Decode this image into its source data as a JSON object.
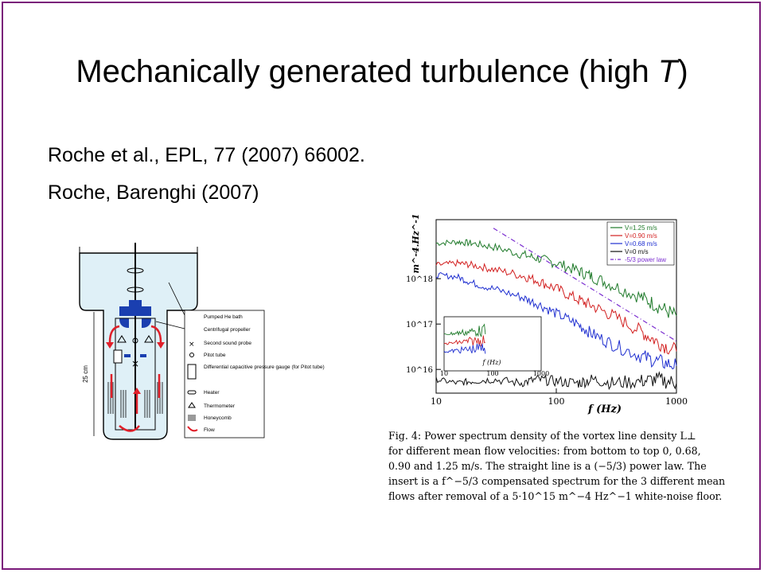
{
  "slide": {
    "title_prefix": "Mechanically generated turbulence (high ",
    "title_italic": "T",
    "title_suffix": ")",
    "references": [
      "Roche et al., EPL, 77 (2007) 66002.",
      "Roche, Barenghi (2007)"
    ]
  },
  "apparatus": {
    "height_label": "25 cm",
    "legend": [
      "Pumped He bath",
      "Centrifugal propeller",
      "Second sound probe",
      "Pitot tube",
      "Differential capacitive pressure gauge (for Pitot tube)",
      "Heater",
      "Thermometer",
      "Honeycomb",
      "Flow"
    ],
    "colors": {
      "flow": "#e0202a",
      "propeller": "#1a3fb0",
      "bath": "#dff0f7"
    }
  },
  "chart_data": {
    "type": "line",
    "xlabel": "f (Hz)",
    "ylabel": "m^-4.Hz^-1",
    "x_scale": "log",
    "y_scale": "log",
    "xlim": [
      10,
      1000
    ],
    "ylim": [
      3000000000000000.0,
      2e+19
    ],
    "x_ticks": [
      "10",
      "100",
      "1000"
    ],
    "y_ticks": [
      "10^16",
      "10^17",
      "10^18"
    ],
    "series": [
      {
        "name": "V=1.25 m/s",
        "color": "#1f7a2a",
        "x": [
          10,
          15,
          20,
          30,
          50,
          70,
          100,
          150,
          200,
          300,
          500,
          700,
          1000
        ],
        "y": [
          6e+18,
          6.5e+18,
          6e+18,
          5e+18,
          3.5e+18,
          2.8e+18,
          2.2e+18,
          1.5e+18,
          1.1e+18,
          7e+17,
          4e+17,
          2.5e+17,
          1.5e+17
        ]
      },
      {
        "name": "V=0.90 m/s",
        "color": "#d21f1f",
        "x": [
          10,
          15,
          20,
          30,
          50,
          70,
          100,
          150,
          200,
          300,
          500,
          700,
          1000
        ],
        "y": [
          2e+18,
          2.2e+18,
          2e+18,
          1.6e+18,
          1.2e+18,
          9e+17,
          6e+17,
          3.5e+17,
          2.5e+17,
          1.5e+17,
          7e+16,
          4e+16,
          2.5e+16
        ]
      },
      {
        "name": "V=0.68 m/s",
        "color": "#1f2fd0",
        "x": [
          10,
          15,
          20,
          30,
          50,
          70,
          100,
          150,
          200,
          300,
          500,
          700,
          1000
        ],
        "y": [
          1.2e+18,
          1.1e+18,
          8e+17,
          6e+17,
          4e+17,
          2.8e+17,
          1.7e+17,
          1e+17,
          6e+16,
          3.5e+16,
          2e+16,
          1.5e+16,
          1.2e+16
        ]
      },
      {
        "name": "V=0 m/s",
        "color": "#111111",
        "x": [
          10,
          15,
          20,
          30,
          50,
          70,
          100,
          150,
          200,
          300,
          500,
          700,
          1000
        ],
        "y": [
          6000000000000000.0,
          5000000000000000.0,
          5500000000000000.0,
          6000000000000000.0,
          5000000000000000.0,
          6000000000000000.0,
          5500000000000000.0,
          5000000000000000.0,
          6000000000000000.0,
          5000000000000000.0,
          5500000000000000.0,
          6000000000000000.0,
          5000000000000000.0
        ]
      },
      {
        "name": "-5/3 power law",
        "color": "#7b2ed0",
        "dash": true,
        "x": [
          30,
          1000
        ],
        "y": [
          1.3e+19,
          4.2e+16
        ]
      }
    ],
    "inset": {
      "x_ticks": [
        "10",
        "100",
        "1000"
      ],
      "xlabel": "f (Hz)"
    }
  },
  "caption": {
    "lines": [
      "Fig. 4: Power spectrum density of the vortex line density L⊥",
      "for different mean flow velocities: from bottom to top 0, 0.68,",
      "0.90 and 1.25 m/s. The straight line is a (−5/3) power law. The",
      "insert is a f^−5/3 compensated spectrum for the 3 different mean",
      "flows after removal of a 5·10^15 m^−4 Hz^−1 white-noise floor."
    ]
  }
}
